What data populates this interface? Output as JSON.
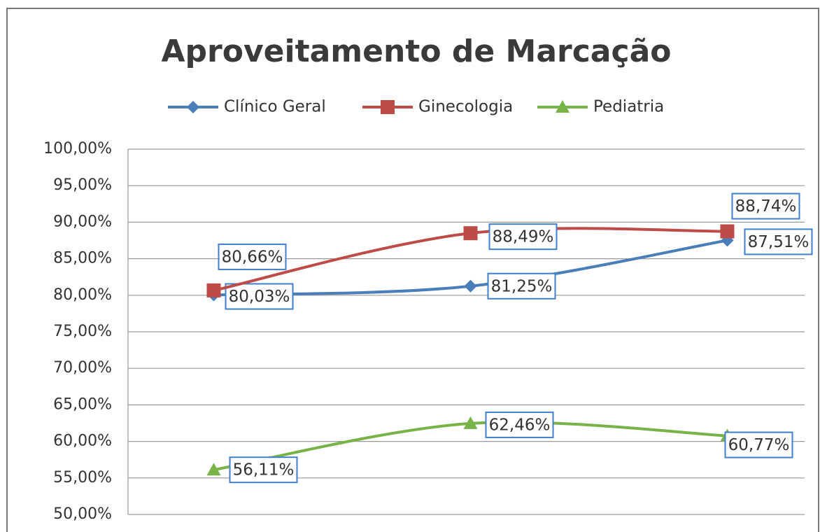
{
  "chart_data": {
    "type": "line",
    "title": "Aproveitamento de Marcação",
    "categories": [
      null,
      null,
      null
    ],
    "series": [
      {
        "name": "Clínico Geral",
        "color": "#4a7ebb",
        "marker": "diamond",
        "values": [
          80.03,
          81.25,
          87.51
        ],
        "value_labels": [
          "80,03%",
          "81,25%",
          "87,51%"
        ]
      },
      {
        "name": "Ginecologia",
        "color": "#be4b48",
        "marker": "square",
        "values": [
          80.66,
          88.49,
          88.74
        ],
        "value_labels": [
          "80,66%",
          "88,49%",
          "88,74%"
        ]
      },
      {
        "name": "Pediatria",
        "color": "#77b347",
        "marker": "triangle",
        "values": [
          56.11,
          62.46,
          60.77
        ],
        "value_labels": [
          "56,11%",
          "62,46%",
          "60,77%"
        ]
      }
    ],
    "ylim": [
      50,
      100
    ],
    "yticks": [
      {
        "value": 50,
        "label": "50,00%"
      },
      {
        "value": 55,
        "label": "55,00%"
      },
      {
        "value": 60,
        "label": "60,00%"
      },
      {
        "value": 65,
        "label": "65,00%"
      },
      {
        "value": 70,
        "label": "70,00%"
      },
      {
        "value": 75,
        "label": "75,00%"
      },
      {
        "value": 80,
        "label": "80,00%"
      },
      {
        "value": 85,
        "label": "85,00%"
      },
      {
        "value": 90,
        "label": "90,00%"
      },
      {
        "value": 95,
        "label": "95,00%"
      },
      {
        "value": 100,
        "label": "100,00%"
      }
    ],
    "grid": true,
    "legend": "top",
    "smooth": true
  }
}
